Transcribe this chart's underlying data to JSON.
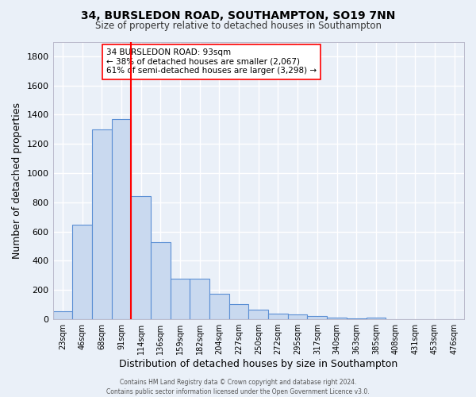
{
  "title1": "34, BURSLEDON ROAD, SOUTHAMPTON, SO19 7NN",
  "title2": "Size of property relative to detached houses in Southampton",
  "xlabel": "Distribution of detached houses by size in Southampton",
  "ylabel": "Number of detached properties",
  "categories": [
    "23sqm",
    "46sqm",
    "68sqm",
    "91sqm",
    "114sqm",
    "136sqm",
    "159sqm",
    "182sqm",
    "204sqm",
    "227sqm",
    "250sqm",
    "272sqm",
    "295sqm",
    "317sqm",
    "340sqm",
    "363sqm",
    "385sqm",
    "408sqm",
    "431sqm",
    "453sqm",
    "476sqm"
  ],
  "values": [
    55,
    645,
    1300,
    1370,
    845,
    525,
    275,
    275,
    175,
    105,
    65,
    40,
    35,
    20,
    10,
    5,
    10,
    0,
    0,
    0,
    0
  ],
  "bar_color": "#c9d9ef",
  "bar_edge_color": "#5b8fd4",
  "bg_color": "#eaf0f8",
  "grid_color": "#ffffff",
  "annotation_title": "34 BURSLEDON ROAD: 93sqm",
  "annotation_line1": "← 38% of detached houses are smaller (2,067)",
  "annotation_line2": "61% of semi-detached houses are larger (3,298) →",
  "footer1": "Contains HM Land Registry data © Crown copyright and database right 2024.",
  "footer2": "Contains public sector information licensed under the Open Government Licence v3.0.",
  "ylim": [
    0,
    1900
  ],
  "yticks": [
    0,
    200,
    400,
    600,
    800,
    1000,
    1200,
    1400,
    1600,
    1800
  ],
  "red_line_x": 3.5
}
